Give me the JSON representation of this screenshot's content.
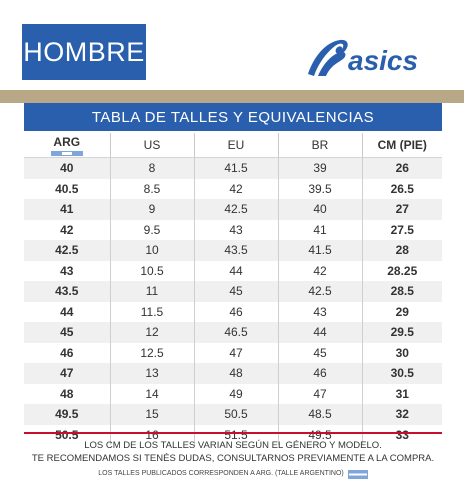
{
  "tab_label": "HOMBRE",
  "brand": "asics",
  "table_title": "TABLA DE TALLES Y EQUIVALENCIAS",
  "headers": [
    "ARG",
    "US",
    "EU",
    "BR",
    "CM (PIE)"
  ],
  "rows": [
    [
      "40",
      "8",
      "41.5",
      "39",
      "26"
    ],
    [
      "40.5",
      "8.5",
      "42",
      "39.5",
      "26.5"
    ],
    [
      "41",
      "9",
      "42.5",
      "40",
      "27"
    ],
    [
      "42",
      "9.5",
      "43",
      "41",
      "27.5"
    ],
    [
      "42.5",
      "10",
      "43.5",
      "41.5",
      "28"
    ],
    [
      "43",
      "10.5",
      "44",
      "42",
      "28.25"
    ],
    [
      "43.5",
      "11",
      "45",
      "42.5",
      "28.5"
    ],
    [
      "44",
      "11.5",
      "46",
      "43",
      "29"
    ],
    [
      "45",
      "12",
      "46.5",
      "44",
      "29.5"
    ],
    [
      "46",
      "12.5",
      "47",
      "45",
      "30"
    ],
    [
      "47",
      "13",
      "48",
      "46",
      "30.5"
    ],
    [
      "48",
      "14",
      "49",
      "47",
      "31"
    ],
    [
      "49.5",
      "15",
      "50.5",
      "48.5",
      "32"
    ],
    [
      "50.5",
      "16",
      "51.5",
      "49.5",
      "33"
    ]
  ],
  "footer": {
    "line1": "LOS CM DE LOS TALLES VARIAN SEGÚN EL GÉNERO Y MODELO.",
    "line2": "TE RECOMENDAMOS SI TENÉS DUDAS, CONSULTARNOS PREVIAMENTE A LA COMPRA.",
    "line3": "LOS TALLES PUBLICADOS CORRESPONDEN A ARG. (TALLE ARGENTINO)"
  },
  "colors": {
    "primary_blue": "#2a5fae",
    "gold_band": "#b8a887",
    "red_line": "#c8102e",
    "stripe": "#f0f0f0"
  },
  "icons": [
    "asics-stripe-logo",
    "argentina-flag-icon"
  ]
}
